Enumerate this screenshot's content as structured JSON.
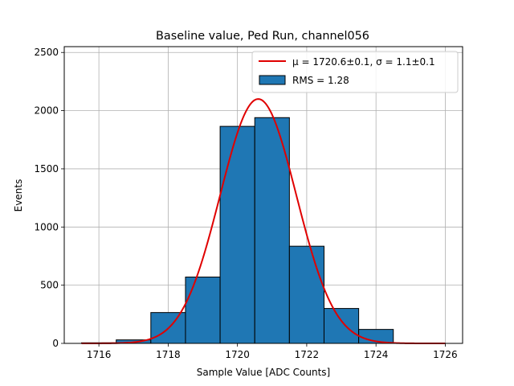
{
  "chart_data": {
    "type": "bar",
    "title": "Baseline value, Ped Run, channel056",
    "xlabel": "Sample Value [ADC Counts]",
    "ylabel": "Events",
    "xlim": [
      1715.0,
      1726.5
    ],
    "ylim": [
      0,
      2550
    ],
    "xticks": [
      1716,
      1718,
      1720,
      1722,
      1724,
      1726
    ],
    "yticks": [
      0,
      500,
      1000,
      1500,
      2000,
      2500
    ],
    "grid": true,
    "legend_position": "top-right",
    "histogram": {
      "name": "RMS = 1.28",
      "color": "#1f77b4",
      "edge_color": "#000000",
      "bin_edges": [
        1715.5,
        1716.5,
        1717.5,
        1718.5,
        1719.5,
        1720.5,
        1721.5,
        1722.5,
        1723.5,
        1724.5
      ],
      "counts": [
        5,
        30,
        265,
        570,
        1865,
        1940,
        835,
        300,
        120
      ]
    },
    "fit": {
      "name": "$\\mu = 1720.6 \\pm 0.1,\\, \\sigma = 1.1 \\pm 0.1$",
      "legend_text": "μ = 1720.6±0.1, σ = 1.1±0.1",
      "color": "#e00000",
      "type": "gaussian",
      "mu": 1720.6,
      "sigma": 1.1,
      "amplitude": 2100,
      "x_range": [
        1715.5,
        1726.0
      ]
    }
  }
}
